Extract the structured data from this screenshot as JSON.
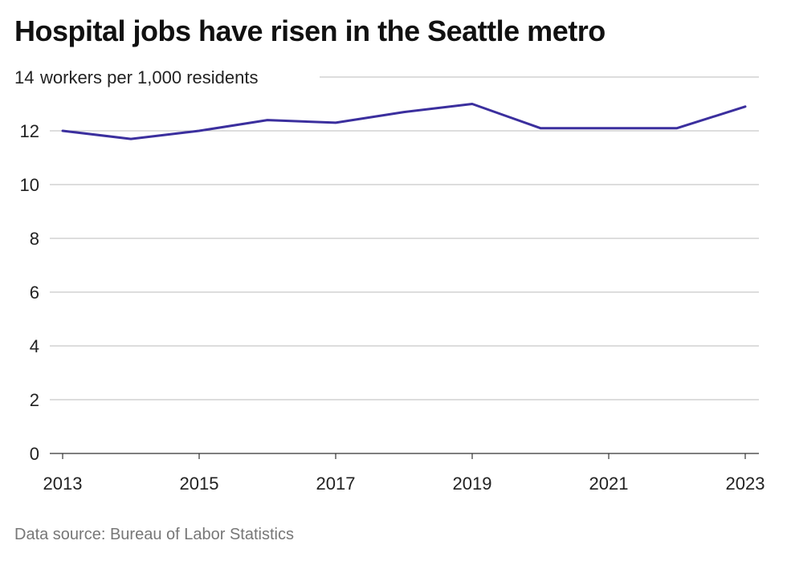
{
  "title": "Hospital jobs have risen in the Seattle metro",
  "source": "Data source: Bureau of Labor Statistics",
  "chart_data": {
    "type": "line",
    "title": "Hospital jobs have risen in the Seattle metro",
    "unit_label": "workers per 1,000 residents",
    "x": [
      2013,
      2014,
      2015,
      2016,
      2017,
      2018,
      2019,
      2020,
      2021,
      2022,
      2023
    ],
    "series": [
      {
        "values": [
          12.0,
          11.7,
          12.0,
          12.4,
          12.3,
          12.7,
          13.0,
          12.1,
          12.1,
          12.1,
          12.9
        ]
      }
    ],
    "x_ticks": [
      "2013",
      "2015",
      "2017",
      "2019",
      "2021",
      "2023"
    ],
    "y_ticks": [
      "0",
      "2",
      "4",
      "6",
      "8",
      "10",
      "12",
      "14"
    ],
    "xlim": [
      2013,
      2023
    ],
    "ylim": [
      0,
      14
    ],
    "grid": true,
    "line_color": "#3b2f9e"
  }
}
